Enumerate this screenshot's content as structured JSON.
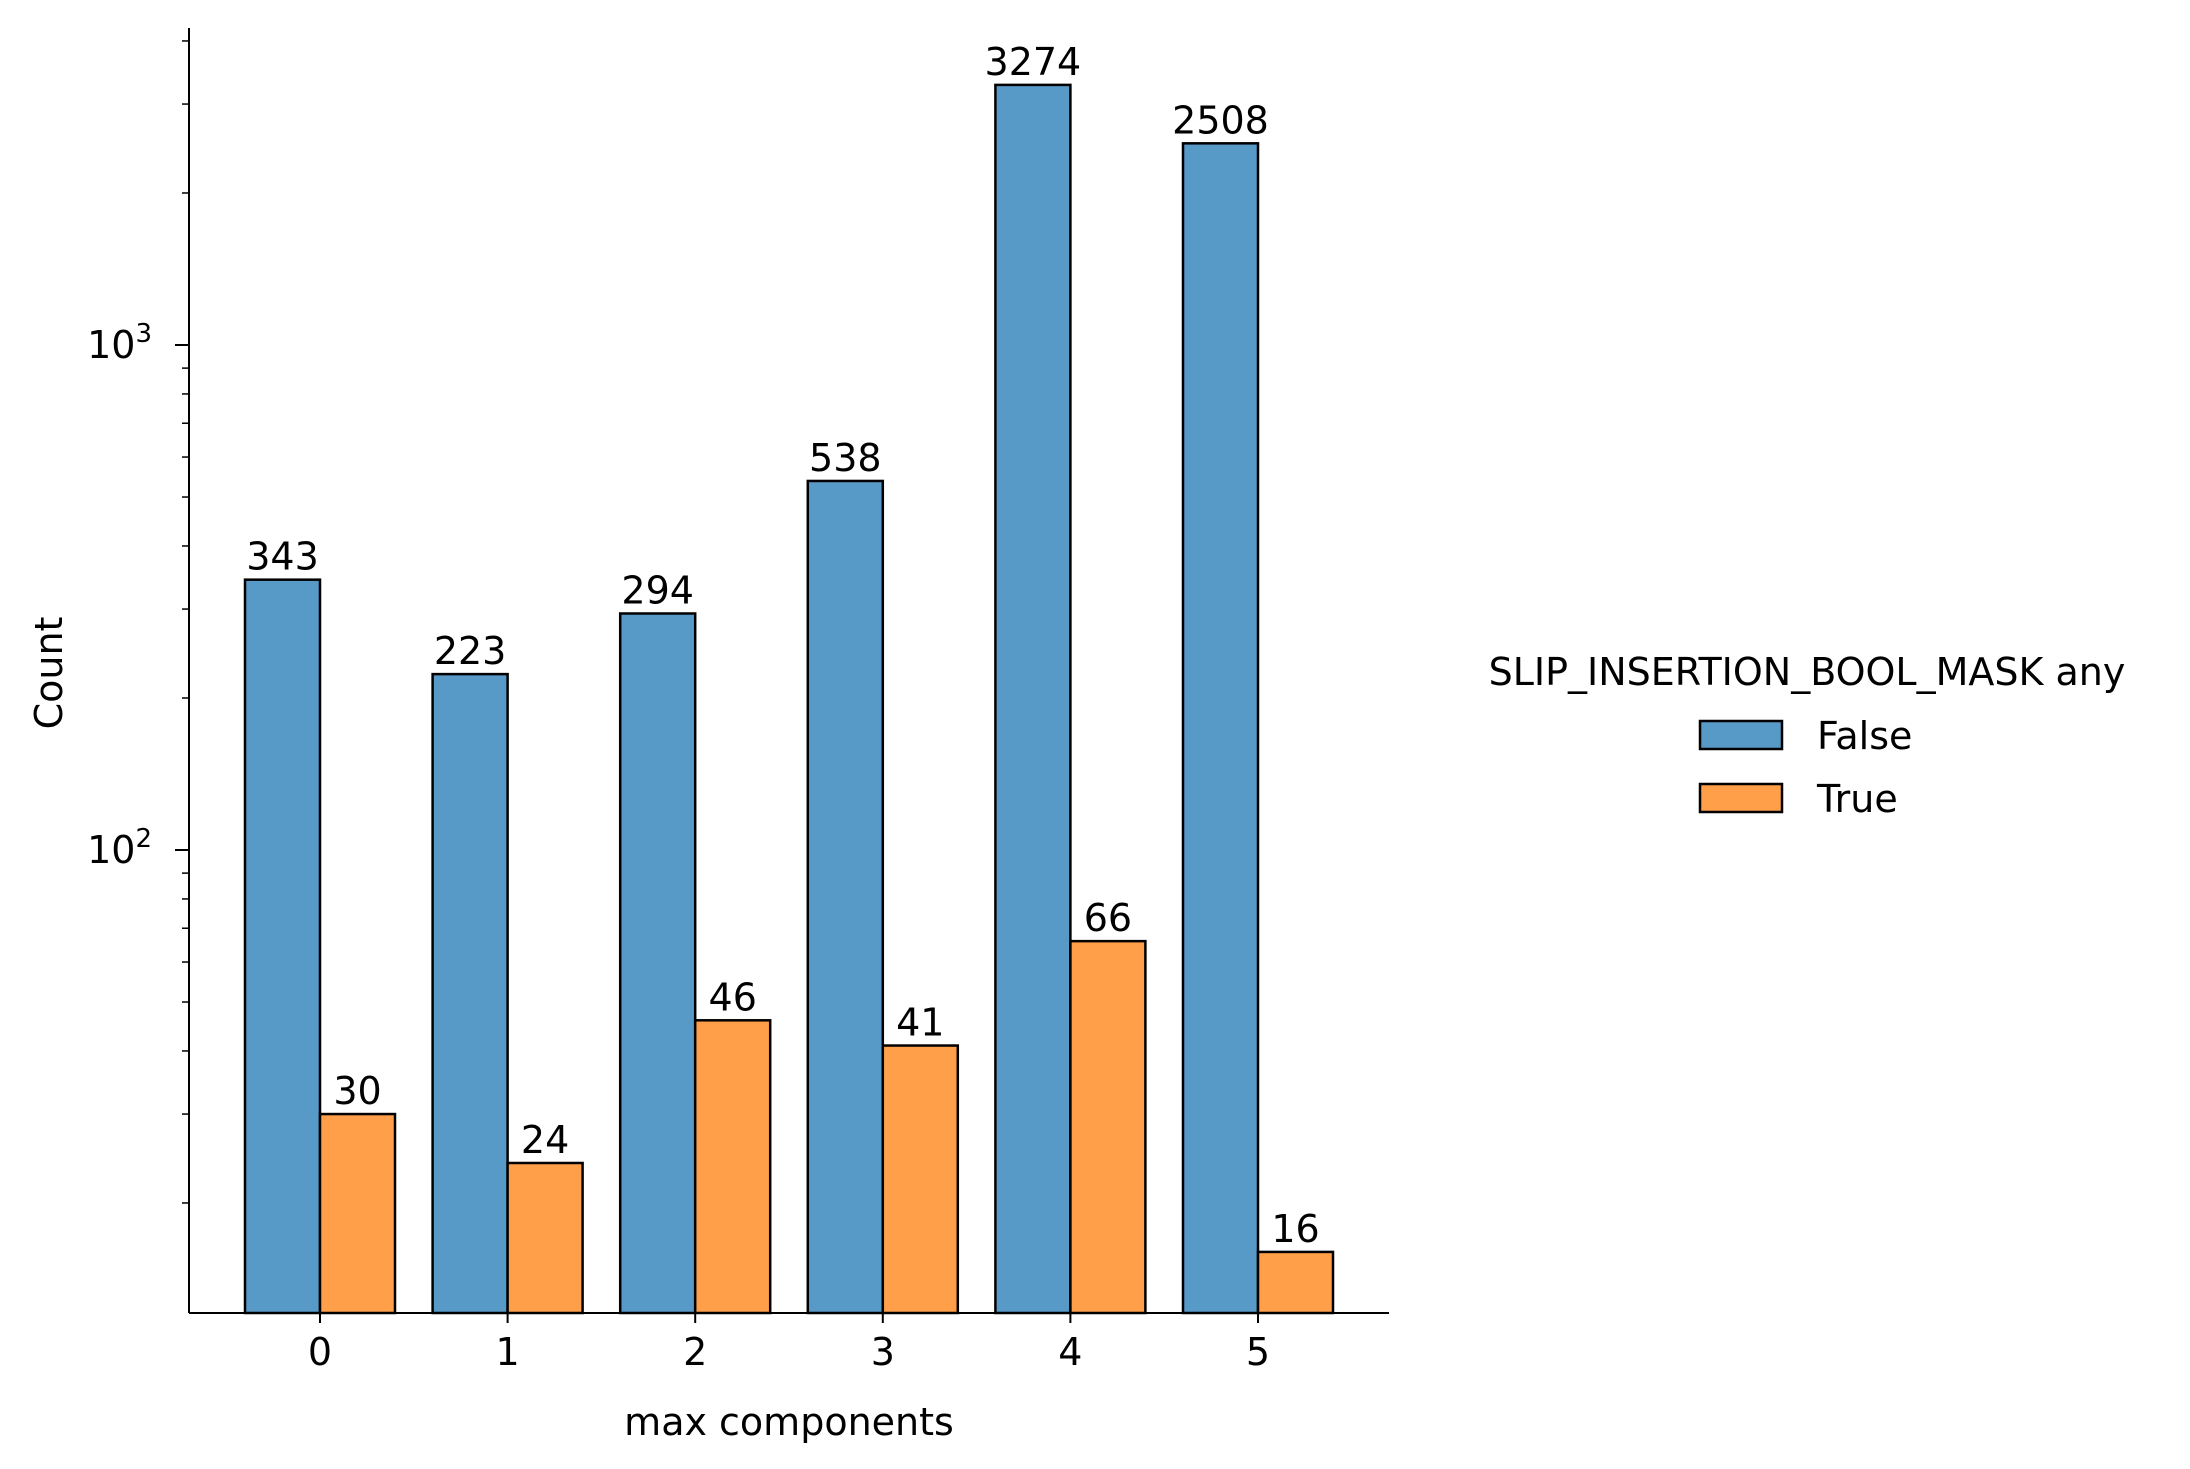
{
  "chart_data": {
    "type": "bar",
    "x": [
      0,
      1,
      2,
      3,
      4,
      5
    ],
    "tick_labels": [
      "0",
      "1",
      "2",
      "3",
      "4",
      "5"
    ],
    "xlabel": "max components",
    "ylabel": "Count",
    "yscale": "log",
    "ylim": [
      11,
      4000
    ],
    "y_ticks": [
      {
        "value": 100,
        "base": "10",
        "exp": "2"
      },
      {
        "value": 1000,
        "base": "10",
        "exp": "3"
      }
    ],
    "legend": {
      "title": "SLIP_INSERTION_BOOL_MASK any",
      "placement": "center-right"
    },
    "series": [
      {
        "name": "False",
        "color": "#5799c7",
        "values": [
          343,
          223,
          294,
          538,
          3274,
          2508
        ],
        "labels": [
          "343",
          "223",
          "294",
          "538",
          "3274",
          "2508"
        ]
      },
      {
        "name": "True",
        "color": "#ff9f4a",
        "values": [
          30,
          24,
          46,
          41,
          66,
          16
        ],
        "labels": [
          "30",
          "24",
          "46",
          "41",
          "66",
          "16"
        ]
      }
    ],
    "grid": false
  }
}
